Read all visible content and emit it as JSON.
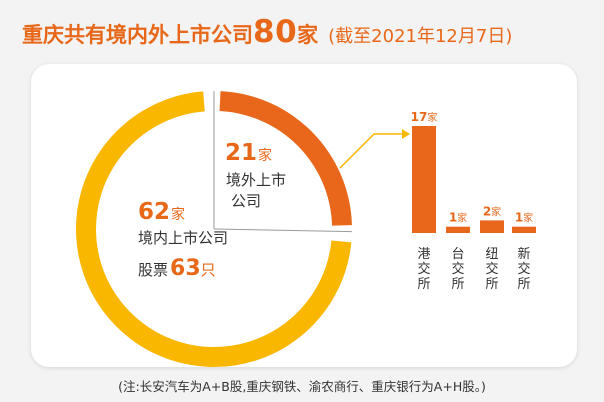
{
  "header": {
    "title_prefix": "重庆共有境内外上市公司",
    "title_count": "80",
    "title_unit": "家",
    "date_note": "(截至2021年12月7日)"
  },
  "footnote": "(注:长安汽车为A+B股,重庆钢铁、渝农商行、重庆银行为A+H股。)",
  "colors": {
    "domestic": "#f9b700",
    "overseas": "#e8671a",
    "text_dark": "#333333",
    "accent_text": "#e8681a"
  },
  "chart_data": [
    {
      "type": "pie",
      "categories": [
        "境内上市公司",
        "境外上市公司"
      ],
      "values": [
        62,
        21
      ],
      "unit": "家",
      "labels": {
        "domestic": {
          "value": "62",
          "unit": "家",
          "text": "境内上市公司",
          "stock_prefix": "股票",
          "stock_value": "63",
          "stock_unit": "只"
        },
        "overseas": {
          "value": "21",
          "unit": "家",
          "text_line1": "境外上市",
          "text_line2": "公司"
        }
      }
    },
    {
      "type": "bar",
      "categories": [
        "港交所",
        "台交所",
        "纽交所",
        "新交所"
      ],
      "values": [
        17,
        1,
        2,
        1
      ],
      "value_unit": "家",
      "ylim": [
        0,
        17
      ]
    }
  ]
}
